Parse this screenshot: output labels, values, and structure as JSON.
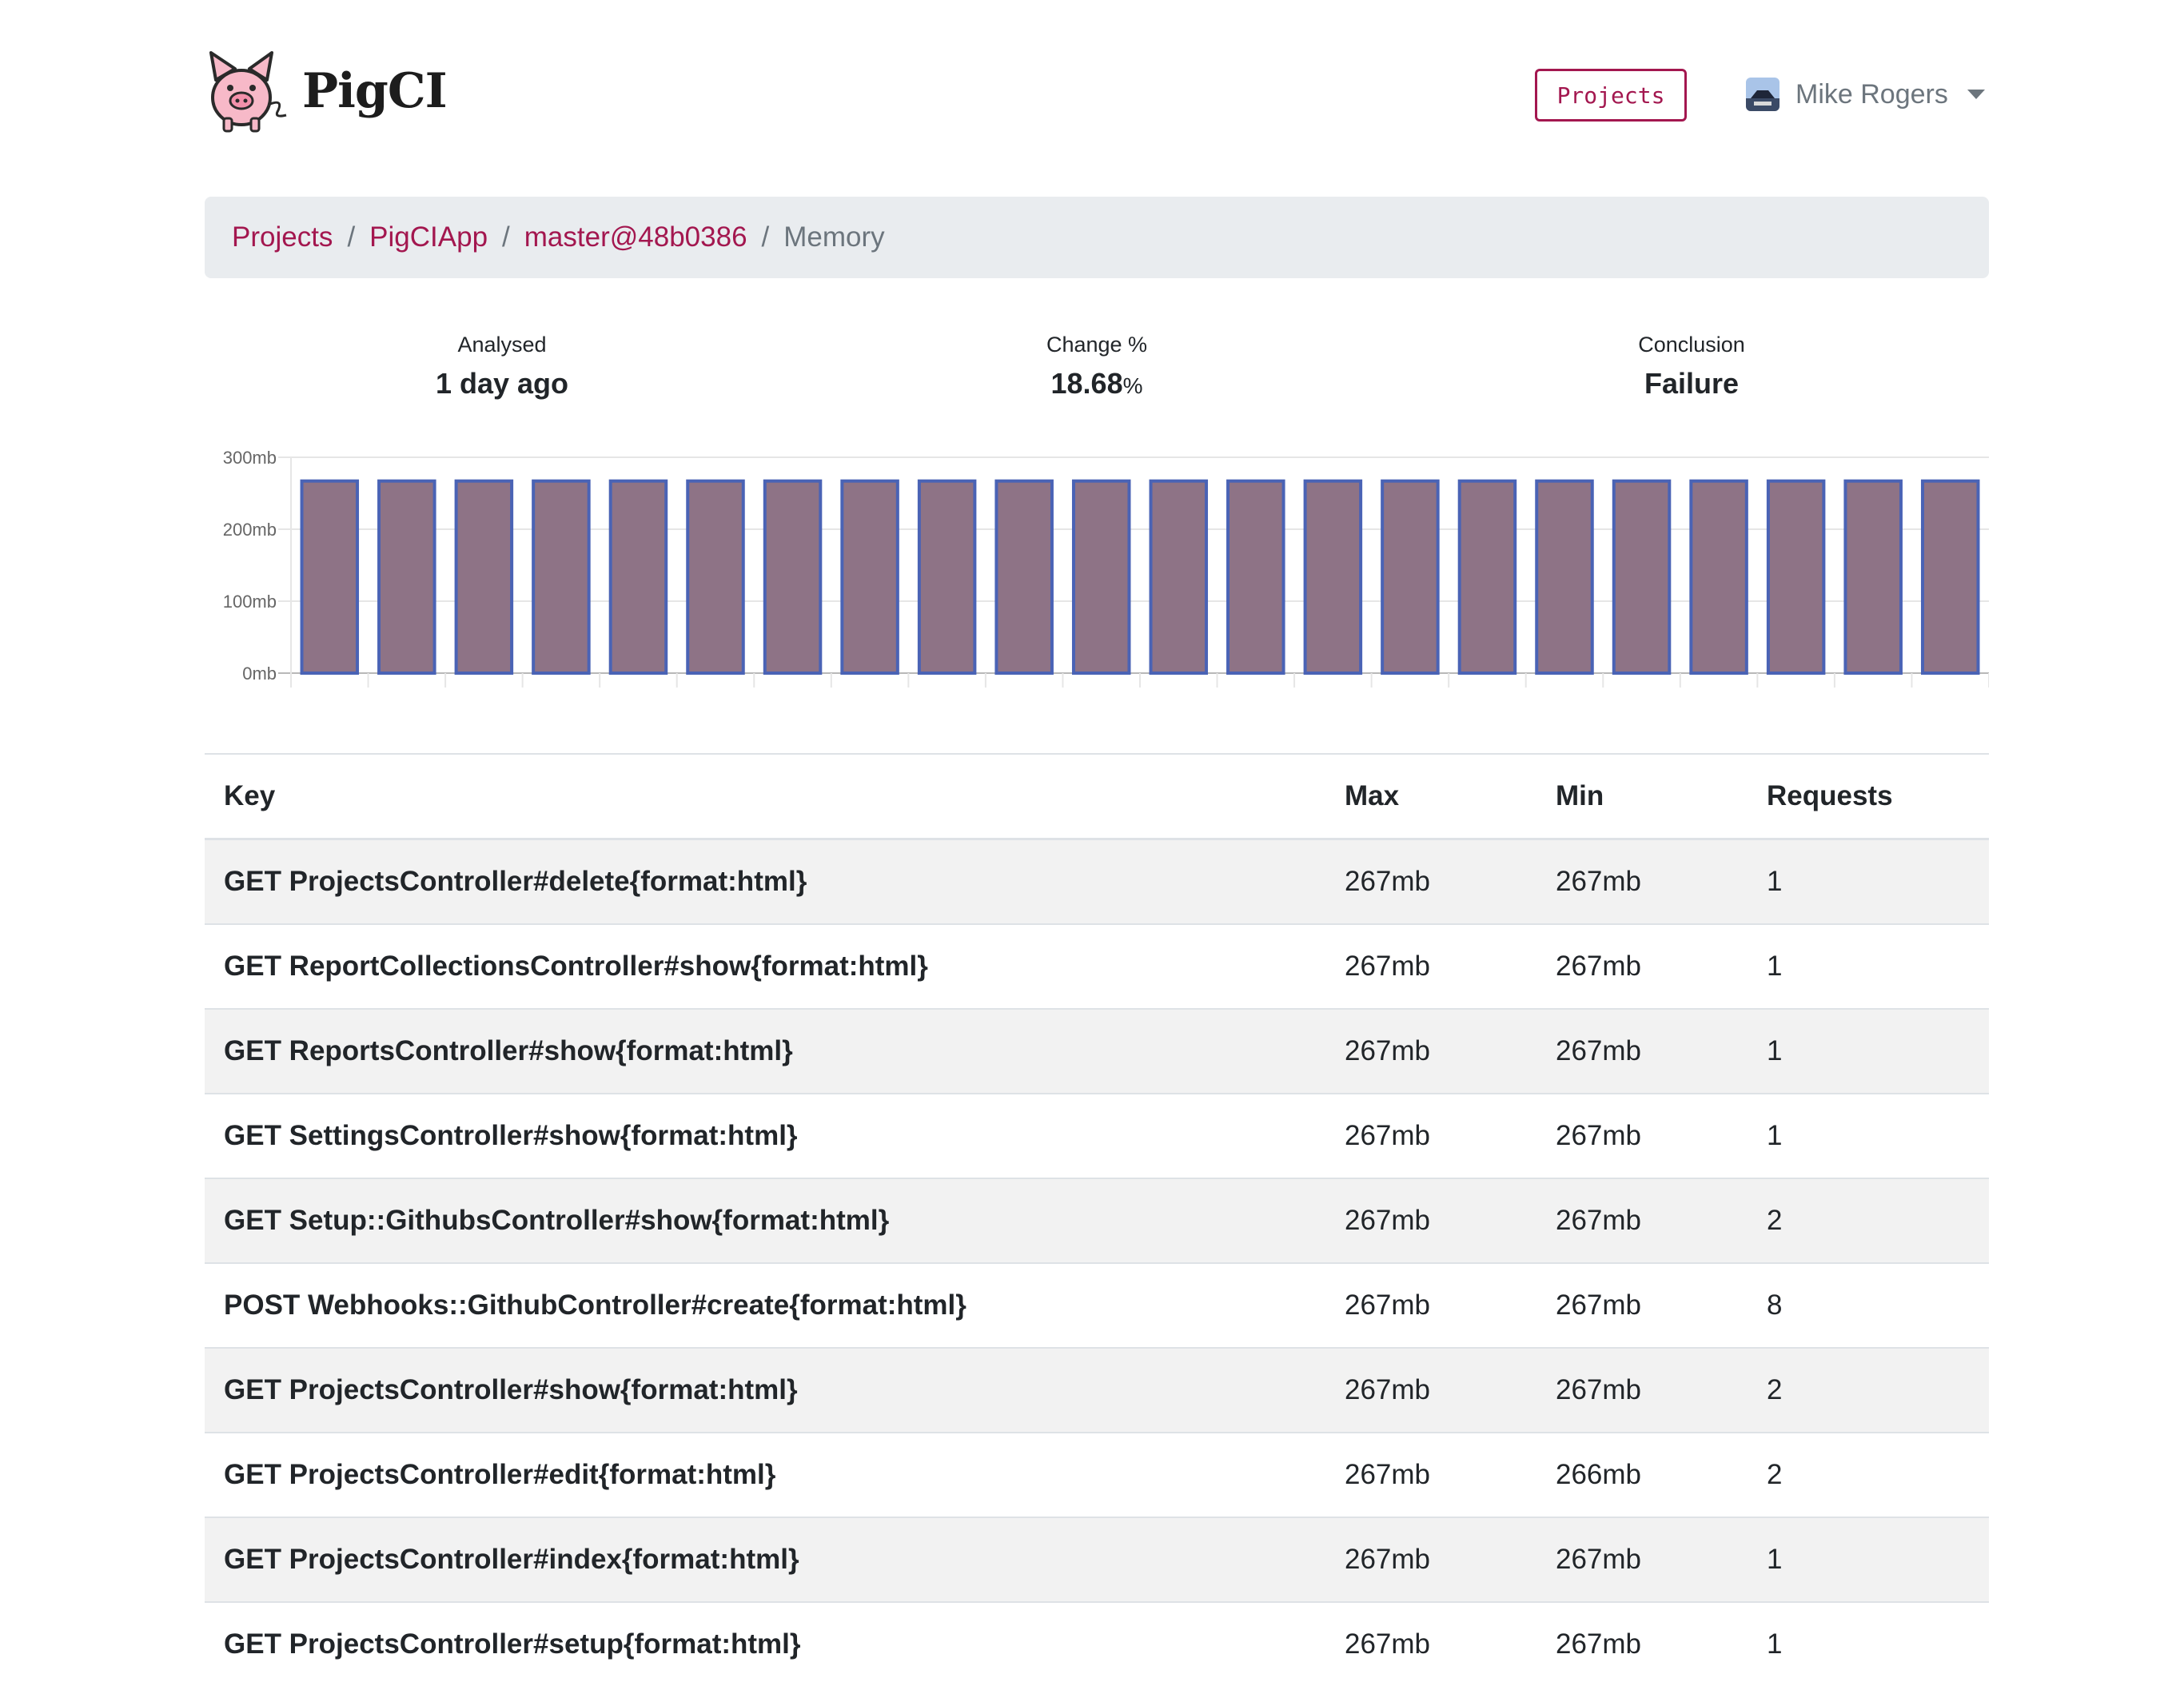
{
  "header": {
    "brand": "PigCI",
    "projects_button": "Projects",
    "user_name": "Mike Rogers"
  },
  "breadcrumb": {
    "items": [
      "Projects",
      "PigCIApp",
      "master@48b0386"
    ],
    "active": "Memory"
  },
  "stats": {
    "analysed_label": "Analysed",
    "analysed_value": "1 day ago",
    "change_label": "Change %",
    "change_value": "18.68",
    "change_unit": "%",
    "conclusion_label": "Conclusion",
    "conclusion_value": "Failure"
  },
  "colors": {
    "accent": "#a3174f",
    "bar_fill": "#8e7386",
    "bar_stroke": "#4a63b5"
  },
  "chart_data": {
    "type": "bar",
    "values": [
      267,
      267,
      267,
      267,
      267,
      267,
      267,
      267,
      267,
      267,
      267,
      267,
      267,
      267,
      267,
      267,
      267,
      267,
      267,
      267,
      267,
      267
    ],
    "ytick_labels": [
      "0mb",
      "100mb",
      "200mb",
      "300mb"
    ],
    "yticks": [
      0,
      100,
      200,
      300
    ],
    "ylim": [
      0,
      300
    ],
    "grid": true,
    "legend": "none"
  },
  "table": {
    "headers": [
      "Key",
      "Max",
      "Min",
      "Requests"
    ],
    "rows": [
      [
        "GET ProjectsController#delete{format:html}",
        "267mb",
        "267mb",
        "1"
      ],
      [
        "GET ReportCollectionsController#show{format:html}",
        "267mb",
        "267mb",
        "1"
      ],
      [
        "GET ReportsController#show{format:html}",
        "267mb",
        "267mb",
        "1"
      ],
      [
        "GET SettingsController#show{format:html}",
        "267mb",
        "267mb",
        "1"
      ],
      [
        "GET Setup::GithubsController#show{format:html}",
        "267mb",
        "267mb",
        "2"
      ],
      [
        "POST Webhooks::GithubController#create{format:html}",
        "267mb",
        "267mb",
        "8"
      ],
      [
        "GET ProjectsController#show{format:html}",
        "267mb",
        "267mb",
        "2"
      ],
      [
        "GET ProjectsController#edit{format:html}",
        "267mb",
        "266mb",
        "2"
      ],
      [
        "GET ProjectsController#index{format:html}",
        "267mb",
        "267mb",
        "1"
      ],
      [
        "GET ProjectsController#setup{format:html}",
        "267mb",
        "267mb",
        "1"
      ]
    ]
  }
}
